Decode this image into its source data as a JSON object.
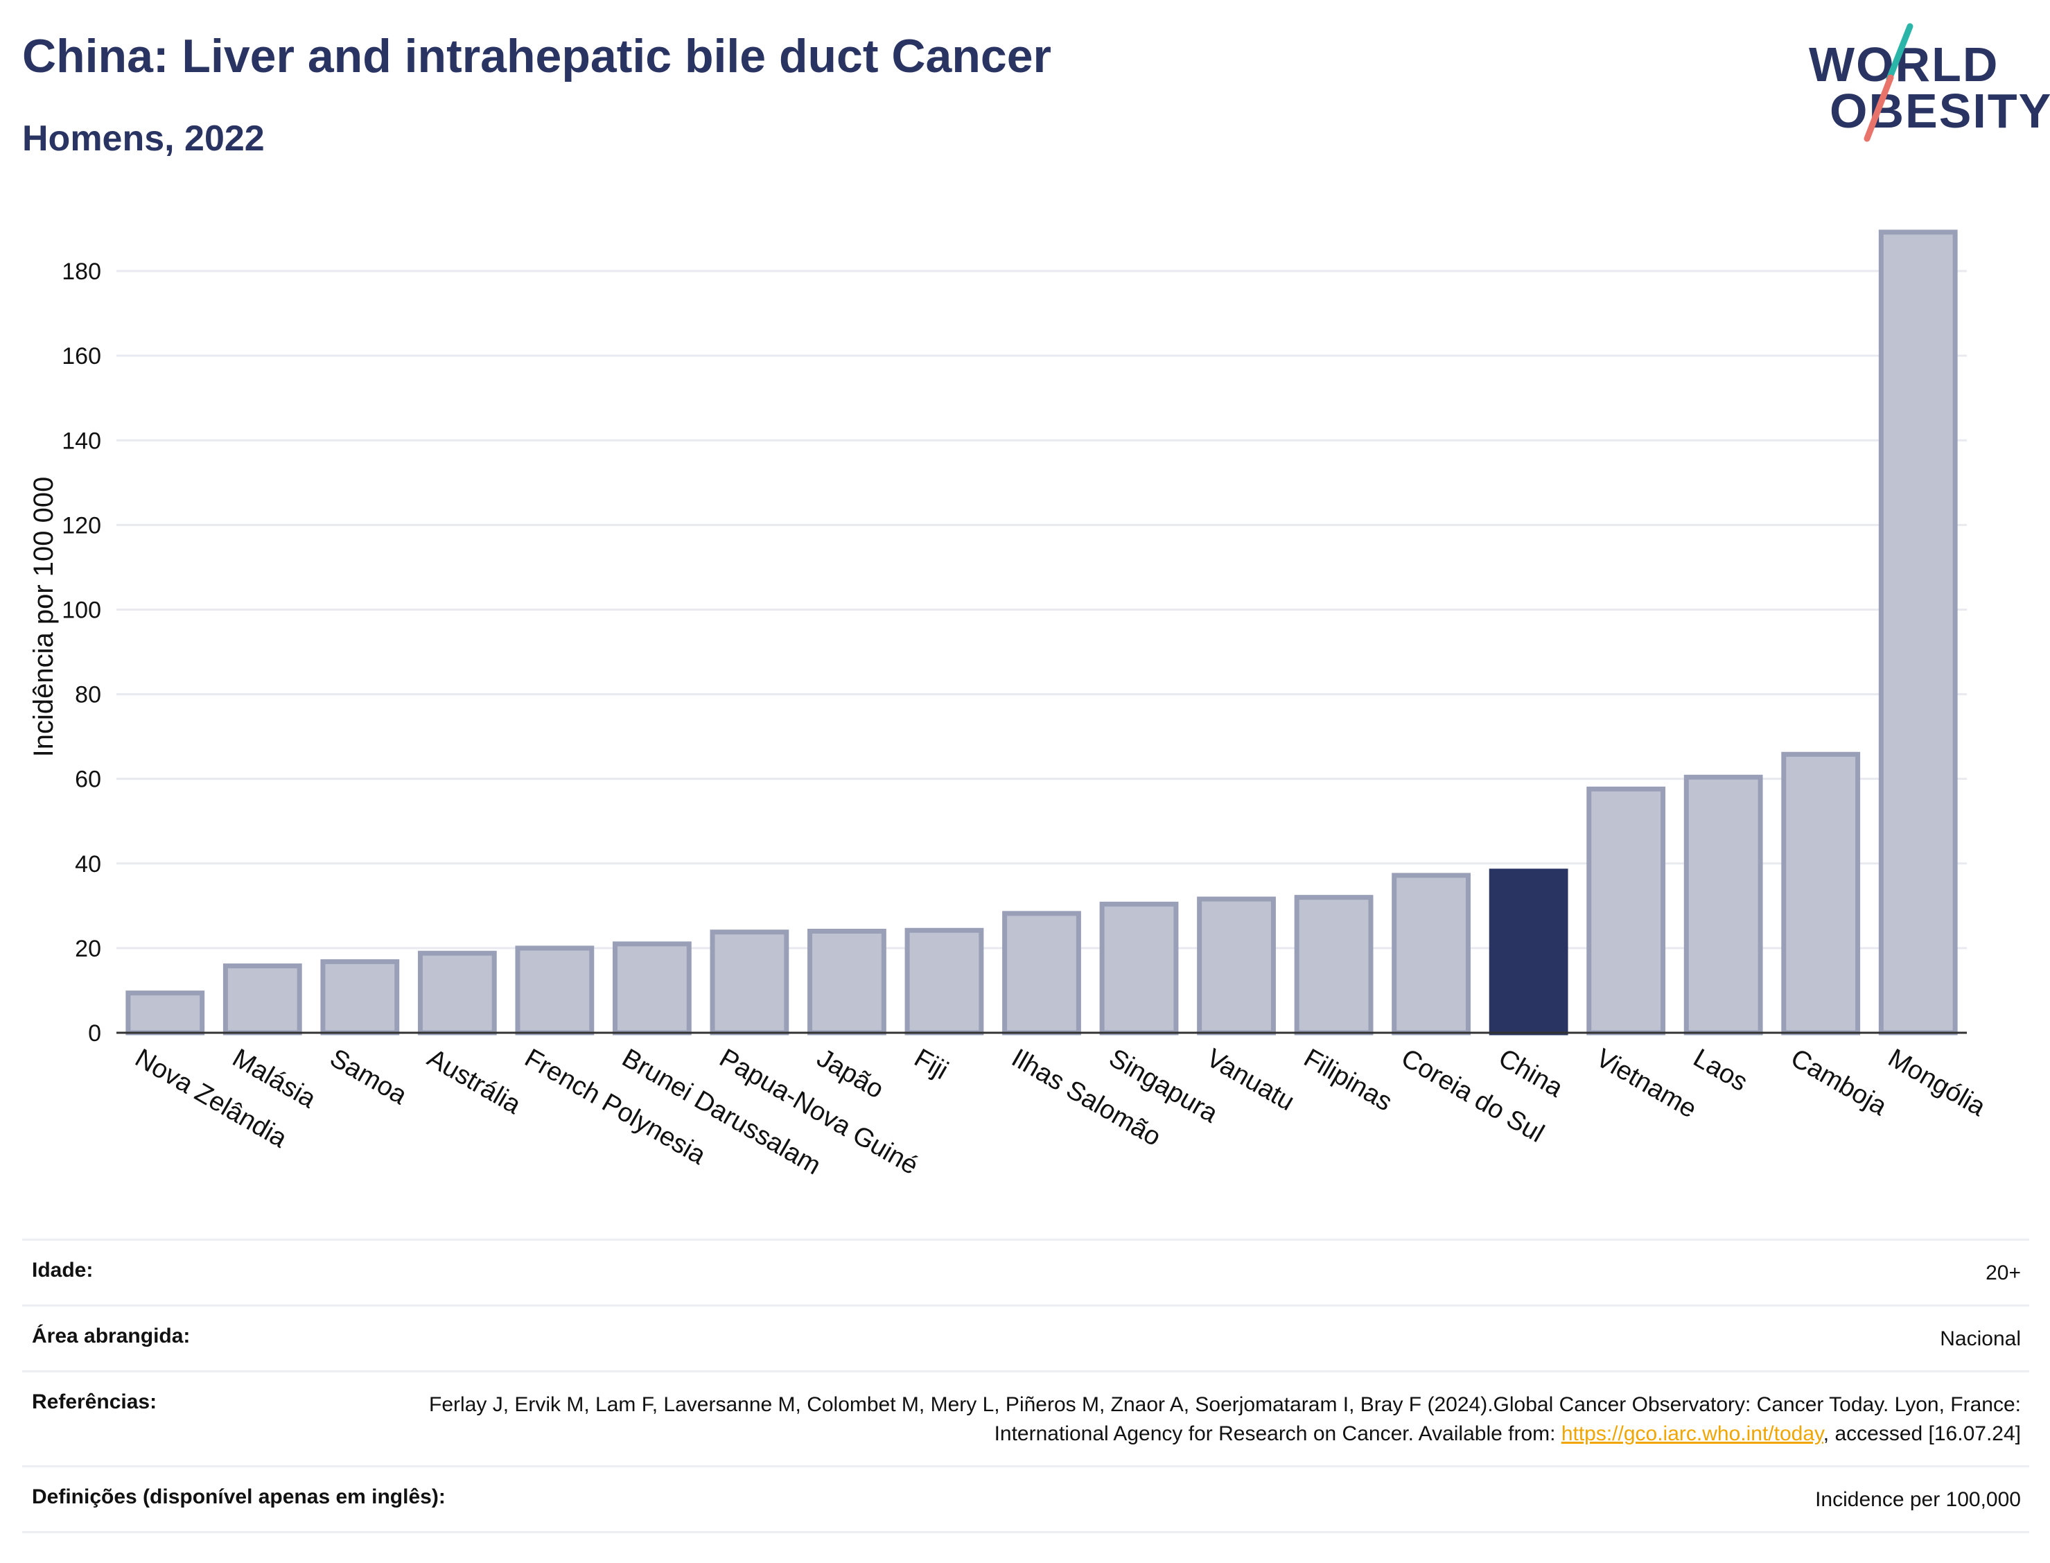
{
  "header": {
    "title": "China: Liver and intrahepatic bile duct Cancer",
    "subtitle": "Homens, 2022"
  },
  "logo": {
    "line1": "WORLD",
    "line2": "OBESITY",
    "slash_colors": [
      "#2bb5a8",
      "#e8736a"
    ]
  },
  "chart_data": {
    "type": "bar",
    "title": "China: Liver and intrahepatic bile duct Cancer",
    "subtitle": "Homens, 2022",
    "xlabel": "",
    "ylabel": "Incidência por 100 000",
    "ylim": [
      0,
      190
    ],
    "yticks": [
      0,
      20,
      40,
      60,
      80,
      100,
      120,
      140,
      160,
      180
    ],
    "grid": true,
    "highlight": "China",
    "colors": {
      "bar": "#bfc2d0",
      "bar_border": "#9a9fb8",
      "highlight": "#2a3462",
      "grid": "#e8eaf0"
    },
    "categories": [
      "Nova Zelândia",
      "Malásia",
      "Samoa",
      "Austrália",
      "French Polynesia",
      "Brunei Darussalam",
      "Papua-Nova Guiné",
      "Japão",
      "Fiji",
      "Ilhas Salomão",
      "Singapura",
      "Vanuatu",
      "Filipinas",
      "Coreia do Sul",
      "China",
      "Vietname",
      "Laos",
      "Camboja",
      "Mongólia"
    ],
    "values": [
      9.4,
      15.8,
      16.8,
      18.8,
      20.0,
      21.0,
      23.8,
      24.0,
      24.2,
      28.2,
      30.4,
      31.6,
      32.0,
      37.2,
      38.2,
      57.6,
      60.4,
      65.8,
      189.2
    ]
  },
  "info": {
    "rows": [
      {
        "label": "Idade:",
        "value": "20+"
      },
      {
        "label": "Área abrangida:",
        "value": "Nacional"
      }
    ],
    "references": {
      "label": "Referências:",
      "text_before": "Ferlay J, Ervik M, Lam F, Laversanne M, Colombet M, Mery L, Piñeros M, Znaor A, Soerjomataram I, Bray F (2024).Global Cancer Observatory: Cancer Today. Lyon, France: International Agency for Research on Cancer. Available from: ",
      "link": "https://gco.iarc.who.int/today",
      "text_after": ", accessed [16.07.24]"
    },
    "definitions": {
      "label": "Definições (disponível apenas em inglês):",
      "value": "Incidence per 100,000"
    }
  }
}
